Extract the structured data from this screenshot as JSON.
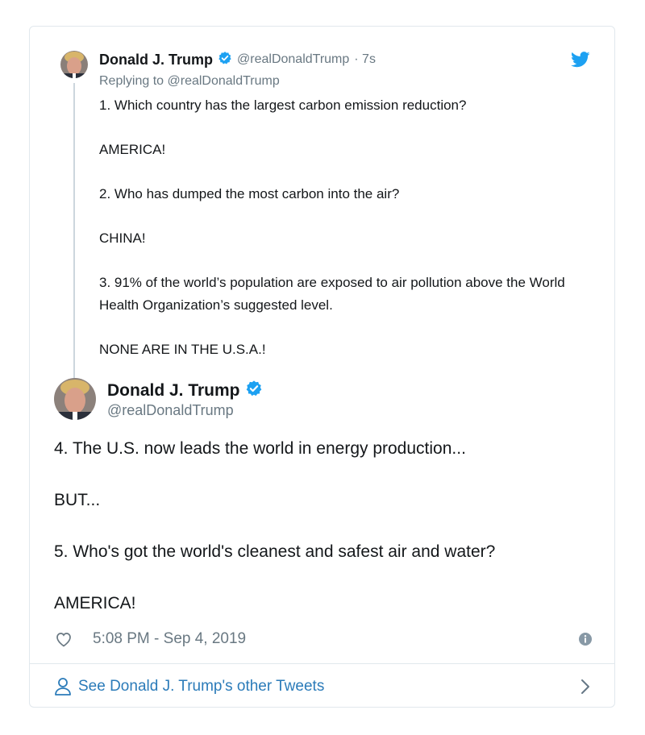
{
  "parent_tweet": {
    "author_name": "Donald J. Trump",
    "handle": "@realDonaldTrump",
    "time_ago": "· 7s",
    "replying_prefix": "Replying to",
    "replying_handle": "@realDonaldTrump",
    "paragraphs": [
      "1. Which country has the largest carbon emission reduction?",
      "AMERICA!",
      "2. Who has dumped the most carbon into the air?",
      "CHINA!",
      "3. 91% of the world’s population are exposed to air pollution above the World Health Organization’s suggested level.",
      "NONE ARE IN THE U.S.A.!"
    ]
  },
  "main_tweet": {
    "author_name": "Donald J. Trump",
    "handle": "@realDonaldTrump",
    "paragraphs": [
      "4. The U.S. now leads the world in energy production...",
      "BUT...",
      "5. Who's got the world's cleanest and safest air and water?",
      "AMERICA!"
    ],
    "timestamp": "5:08 PM - Sep 4, 2019"
  },
  "footer": {
    "link_text": "See Donald J. Trump's other Tweets"
  },
  "icons": {
    "verified": "verified-badge-icon",
    "brand": "twitter-bird-icon",
    "like": "heart-icon",
    "info": "info-icon",
    "profile": "person-icon",
    "next": "chevron-right-icon"
  },
  "colors": {
    "verified_blue": "#1da1f2",
    "link_blue": "#2b7bb9",
    "muted_text": "#697882",
    "border": "#e1e8ed",
    "thread_line": "#ccd6dd"
  }
}
